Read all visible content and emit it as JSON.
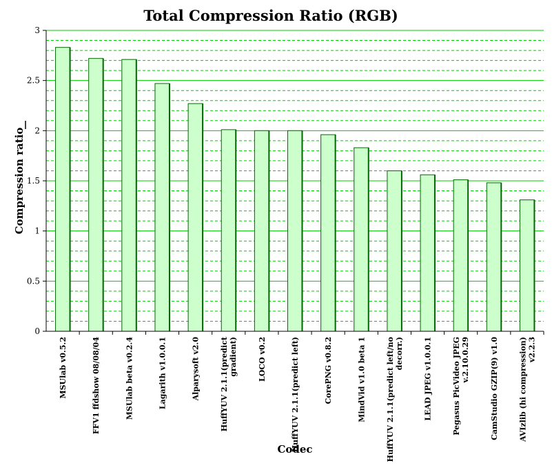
{
  "chart_data": {
    "type": "bar",
    "title": "Total Compression Ratio (RGB)",
    "xlabel": "Codec",
    "ylabel": "Compression ratio",
    "ylim": [
      0,
      3
    ],
    "yticks": [
      "0",
      "0.5",
      "1",
      "1.5",
      "2",
      "2.5",
      "3"
    ],
    "grid": true,
    "categories": [
      [
        "MSUlab v0.5.2"
      ],
      [
        "FFV1 ffdshow 08/08/04"
      ],
      [
        "MSUlab beta v0.2.4"
      ],
      [
        "Lagarith v1.0.0.1"
      ],
      [
        "Alparysoft v2.0"
      ],
      [
        "HuffYUV 2.1.1(predict",
        "gradient)"
      ],
      [
        "LOCO v0.2"
      ],
      [
        "HuffYUV 2.1.1(predict left)"
      ],
      [
        "CorePNG v0.8.2"
      ],
      [
        "MindVid v1.0 beta 1"
      ],
      [
        "HuffYUV 2.1.1(predict left/no",
        "decorr.)"
      ],
      [
        "LEAD JPEG v1.0.0.1"
      ],
      [
        "Pegasus PicVideo JPEG",
        "v.2.10.0.29"
      ],
      [
        "CamStudio GZIP(9) v1.0"
      ],
      [
        "AVIzlib (hi compression)",
        "v2.2.3"
      ]
    ],
    "values": [
      2.83,
      2.72,
      2.71,
      2.47,
      2.27,
      2.01,
      2.0,
      2.0,
      1.96,
      1.83,
      1.6,
      1.56,
      1.51,
      1.48,
      1.31
    ],
    "colors": {
      "bar_fill": "#ccffcc",
      "bar_edge": "#006600",
      "grid_major": "#00cc00",
      "grid_minor": "#00cc00"
    }
  }
}
